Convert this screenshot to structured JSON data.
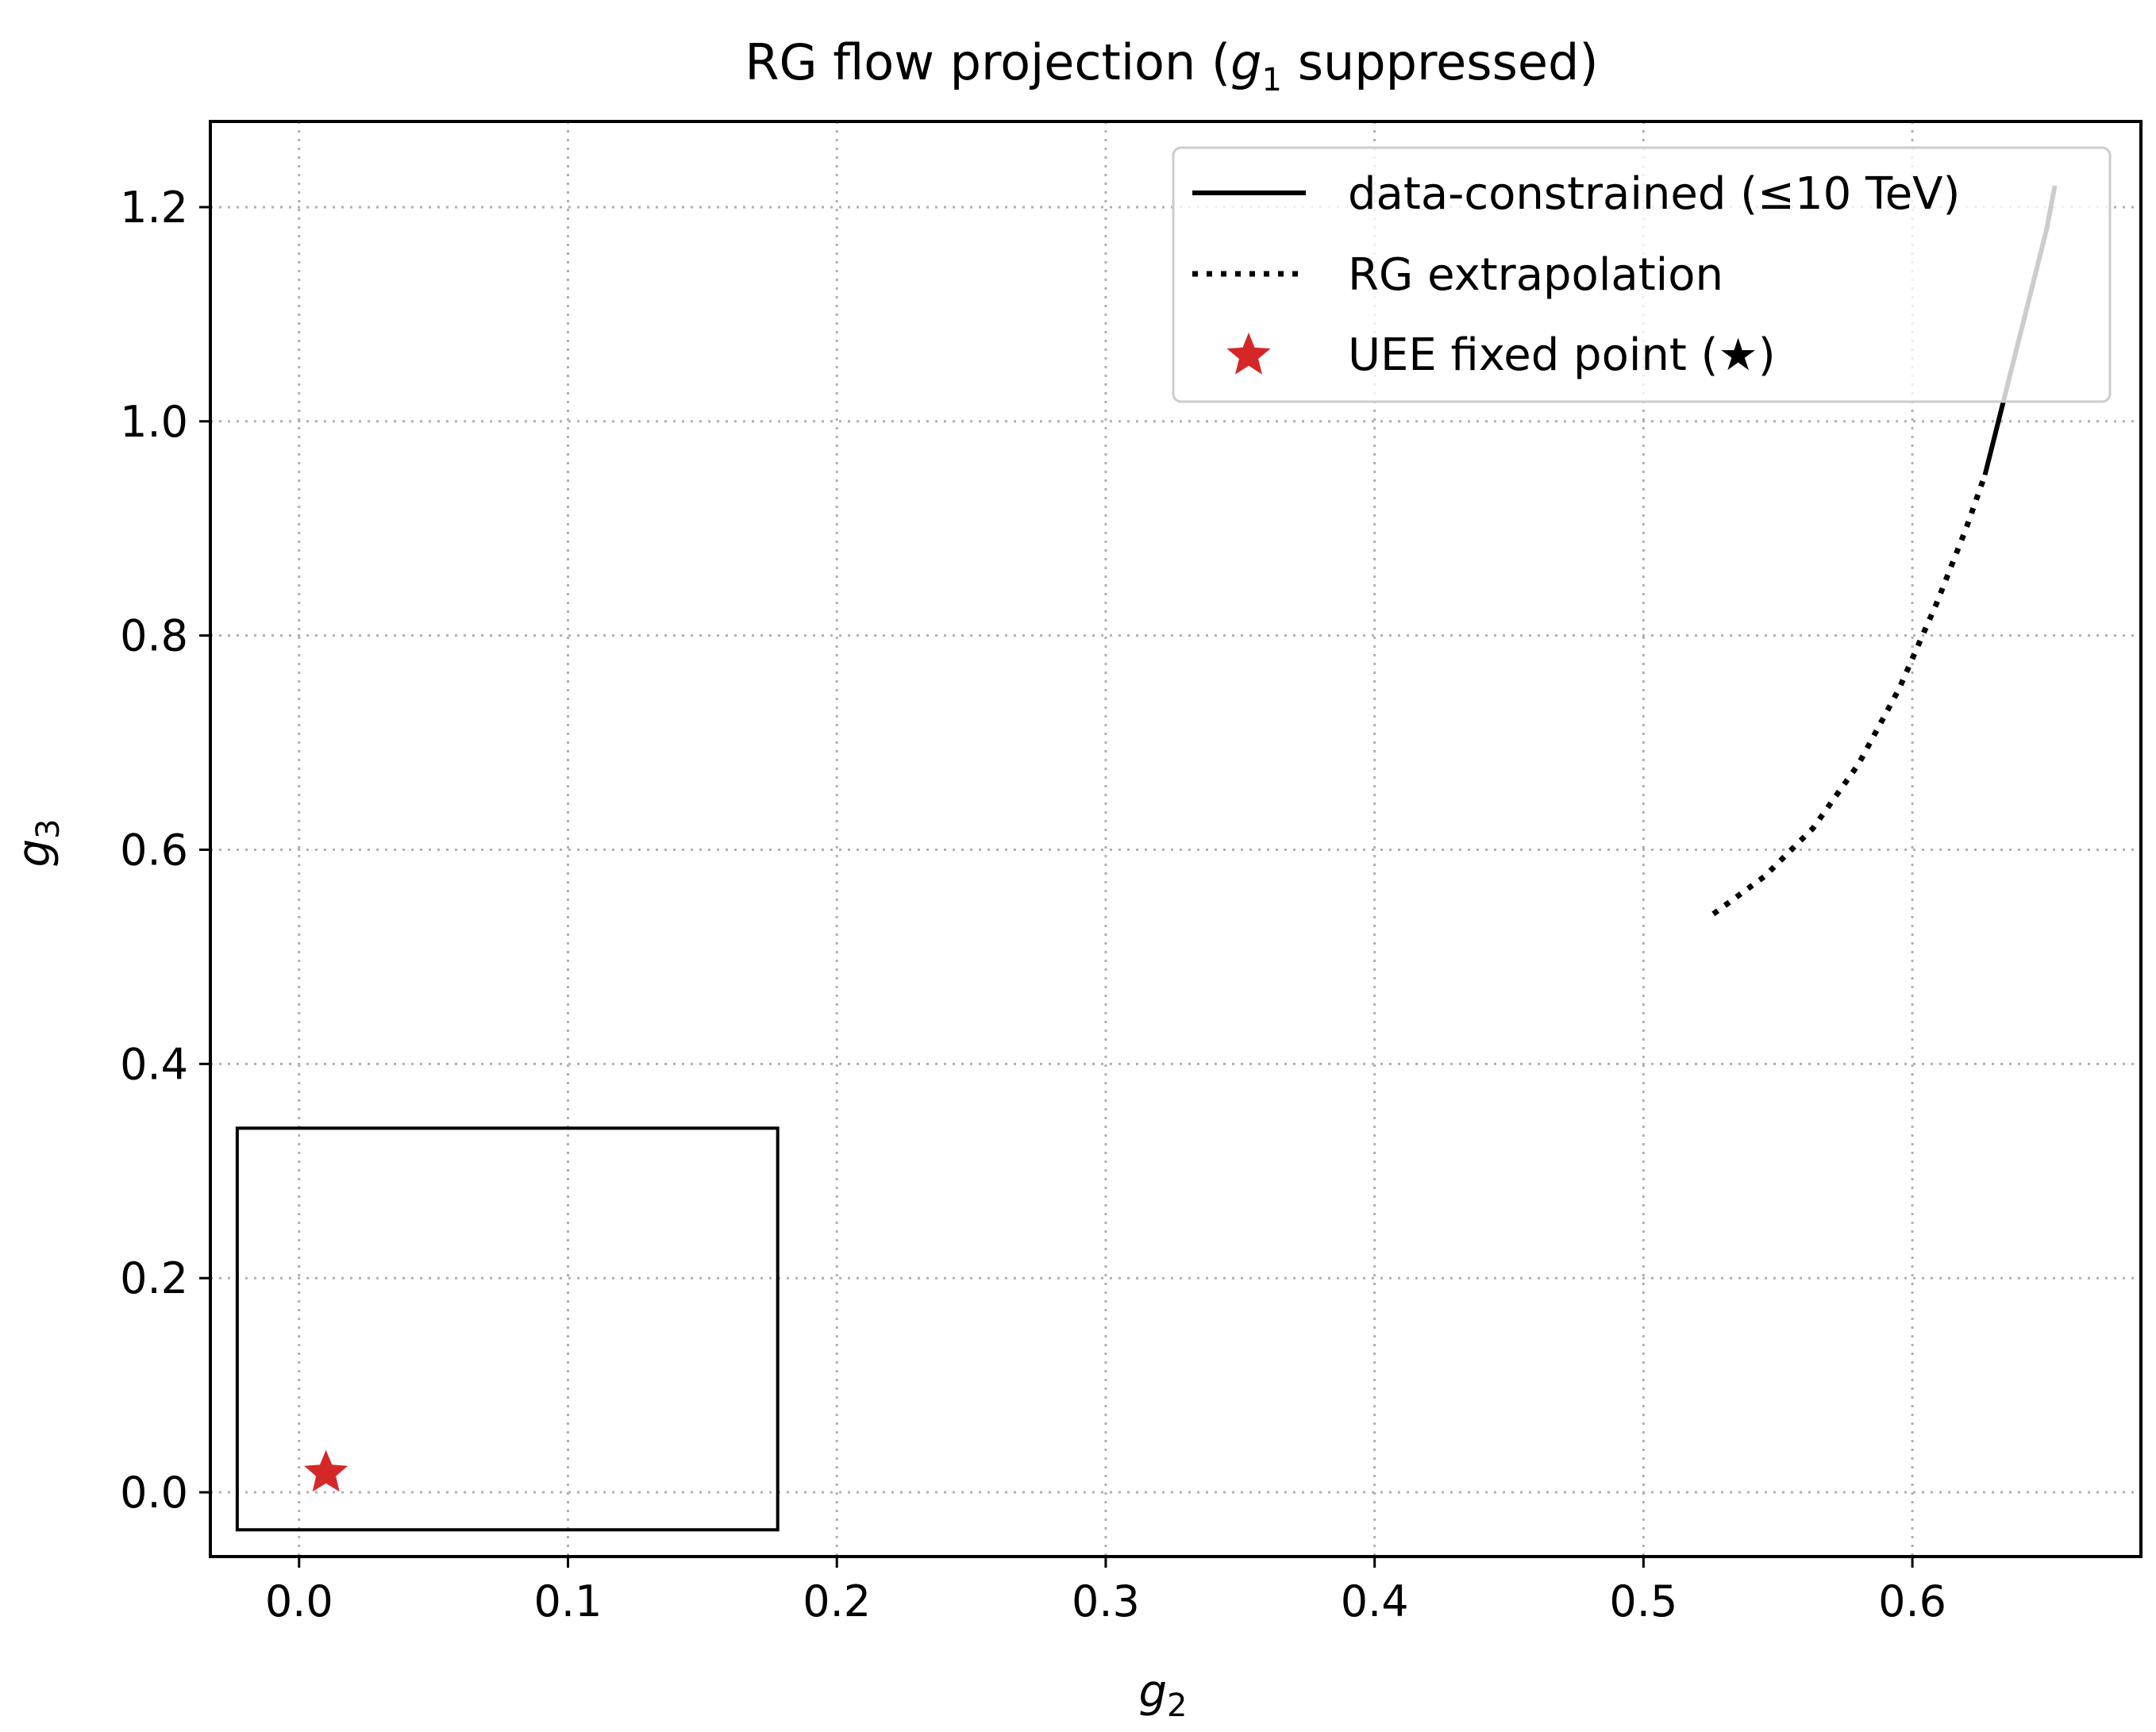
{
  "chart_data": {
    "type": "line",
    "title": "RG flow projection  (",
    "title_var": "g",
    "title_var_sub": "1",
    "title_rest": " suppressed)",
    "xlabel": "g",
    "xlabel_sub": "2",
    "ylabel": "g",
    "ylabel_sub": "3",
    "xlim": [
      -0.033,
      0.685
    ],
    "ylim": [
      -0.06,
      1.28
    ],
    "xticks": [
      0.0,
      0.1,
      0.2,
      0.3,
      0.4,
      0.5,
      0.6
    ],
    "xtick_labels": [
      "0.0",
      "0.1",
      "0.2",
      "0.3",
      "0.4",
      "0.5",
      "0.6"
    ],
    "yticks": [
      0.0,
      0.2,
      0.4,
      0.6,
      0.8,
      1.0,
      1.2
    ],
    "ytick_labels": [
      "0.0",
      "0.2",
      "0.4",
      "0.6",
      "0.8",
      "1.0",
      "1.2"
    ],
    "grid": true,
    "legend_position": "top-right",
    "series": [
      {
        "name": "data-constrained (≤10 TeV)",
        "style": "solid",
        "color": "#000000",
        "points": [
          [
            0.627,
            0.95
          ],
          [
            0.631,
            0.99
          ],
          [
            0.636,
            1.04
          ],
          [
            0.641,
            1.09
          ],
          [
            0.646,
            1.14
          ],
          [
            0.65,
            1.18
          ],
          [
            0.653,
            1.22
          ]
        ]
      },
      {
        "name": "RG extrapolation",
        "style": "dotted",
        "color": "#000000",
        "points": [
          [
            0.526,
            0.54
          ],
          [
            0.545,
            0.575
          ],
          [
            0.563,
            0.62
          ],
          [
            0.58,
            0.68
          ],
          [
            0.595,
            0.75
          ],
          [
            0.609,
            0.83
          ],
          [
            0.62,
            0.9
          ],
          [
            0.627,
            0.95
          ]
        ]
      }
    ],
    "markers": [
      {
        "name": "UEE fixed point (★)",
        "shape": "star",
        "color": "#d62728",
        "points": [
          [
            0.01,
            0.018
          ]
        ]
      }
    ],
    "inset_box": {
      "x": [
        -0.023,
        0.178
      ],
      "y": [
        -0.035,
        0.34
      ]
    }
  }
}
